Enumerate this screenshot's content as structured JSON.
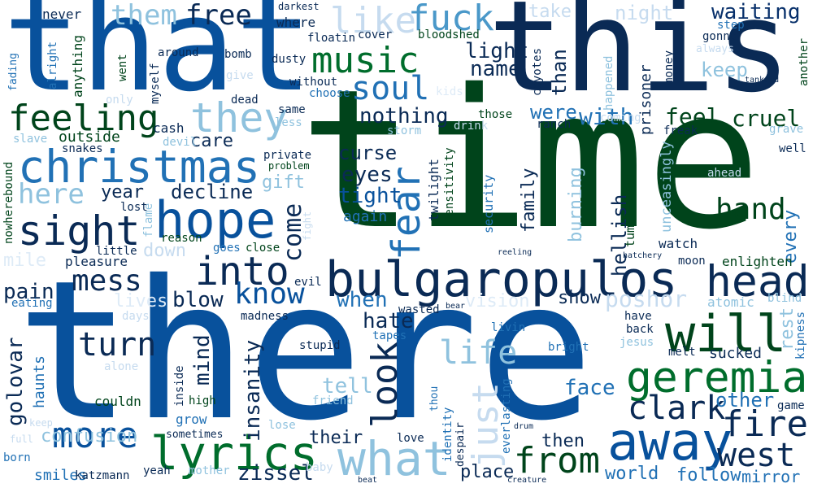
{
  "colors": {
    "navy": "#08306b",
    "dark_navy": "#0a2a55",
    "blue": "#08519c",
    "mid_blue": "#2171b5",
    "steel": "#4a98c9",
    "light_blue": "#8fc2de",
    "pale": "#c6dbef",
    "paler": "#deebf7",
    "dark_green": "#00441b",
    "green": "#006d2c",
    "bright_green": "#238b45",
    "lime": "#1a8f1a"
  },
  "words": [
    {
      "t": "time",
      "c": "dark_green"
    },
    {
      "t": "there",
      "c": "blue"
    },
    {
      "t": "that",
      "c": "blue"
    },
    {
      "t": "this",
      "c": "dark_navy"
    },
    {
      "t": "bulgaropulos",
      "c": "dark_navy"
    },
    {
      "t": "christmas",
      "c": "mid_blue"
    },
    {
      "t": "geremia",
      "c": "green"
    },
    {
      "t": "away",
      "c": "blue"
    },
    {
      "t": "lyrics",
      "c": "green"
    },
    {
      "t": "what",
      "c": "light_blue"
    },
    {
      "t": "hope",
      "c": "blue"
    },
    {
      "t": "sight",
      "c": "dark_navy"
    },
    {
      "t": "music",
      "c": "green"
    },
    {
      "t": "will",
      "c": "dark_green"
    },
    {
      "t": "head",
      "c": "dark_navy"
    },
    {
      "t": "into",
      "c": "dark_navy"
    },
    {
      "t": "feeling",
      "c": "dark_green"
    },
    {
      "t": "they",
      "c": "light_blue"
    },
    {
      "t": "fuck",
      "c": "steel"
    },
    {
      "t": "soul",
      "c": "mid_blue"
    },
    {
      "t": "like",
      "c": "pale"
    },
    {
      "t": "them",
      "c": "light_blue"
    },
    {
      "t": "free",
      "c": "dark_navy"
    },
    {
      "t": "fear",
      "c": "mid_blue"
    },
    {
      "t": "fire",
      "c": "dark_navy"
    },
    {
      "t": "west",
      "c": "dark_navy"
    },
    {
      "t": "from",
      "c": "dark_green"
    },
    {
      "t": "more",
      "c": "blue"
    },
    {
      "t": "clark",
      "c": "dark_navy"
    },
    {
      "t": "hand",
      "c": "dark_green"
    },
    {
      "t": "turn",
      "c": "dark_navy"
    },
    {
      "t": "look",
      "c": "dark_navy"
    },
    {
      "t": "just",
      "c": "pale"
    },
    {
      "t": "life",
      "c": "light_blue"
    },
    {
      "t": "mess",
      "c": "dark_navy"
    },
    {
      "t": "know",
      "c": "blue"
    },
    {
      "t": "come",
      "c": "dark_navy"
    },
    {
      "t": "here",
      "c": "light_blue"
    },
    {
      "t": "waiting",
      "c": "navy"
    },
    {
      "t": "feel",
      "c": "dark_green"
    },
    {
      "t": "cruel",
      "c": "dark_green"
    },
    {
      "t": "with",
      "c": "mid_blue"
    },
    {
      "t": "were",
      "c": "mid_blue"
    },
    {
      "t": "nothing",
      "c": "dark_navy"
    },
    {
      "t": "light",
      "c": "dark_navy"
    },
    {
      "t": "name",
      "c": "dark_navy"
    },
    {
      "t": "than",
      "c": "dark_navy"
    },
    {
      "t": "keep",
      "c": "light_blue"
    },
    {
      "t": "night",
      "c": "pale"
    },
    {
      "t": "take",
      "c": "pale"
    },
    {
      "t": "eyes",
      "c": "dark_navy"
    },
    {
      "t": "curse",
      "c": "dark_navy"
    },
    {
      "t": "tight",
      "c": "blue"
    },
    {
      "t": "again",
      "c": "mid_blue"
    },
    {
      "t": "family",
      "c": "dark_navy"
    },
    {
      "t": "burning",
      "c": "light_blue"
    },
    {
      "t": "hellish",
      "c": "dark_navy"
    },
    {
      "t": "every",
      "c": "mid_blue"
    },
    {
      "t": "poshor",
      "c": "pale"
    },
    {
      "t": "blow",
      "c": "dark_navy"
    },
    {
      "t": "decline",
      "c": "dark_navy"
    },
    {
      "t": "year",
      "c": "dark_navy"
    },
    {
      "t": "gift",
      "c": "light_blue"
    },
    {
      "t": "care",
      "c": "dark_navy"
    },
    {
      "t": "when",
      "c": "mid_blue"
    },
    {
      "t": "hate",
      "c": "dark_navy"
    },
    {
      "t": "show",
      "c": "dark_navy"
    },
    {
      "t": "tell",
      "c": "light_blue"
    },
    {
      "t": "face",
      "c": "mid_blue"
    },
    {
      "t": "other",
      "c": "mid_blue"
    },
    {
      "t": "insanity",
      "c": "dark_navy"
    },
    {
      "t": "mind",
      "c": "dark_navy"
    },
    {
      "t": "pain",
      "c": "dark_navy"
    },
    {
      "t": "golovar",
      "c": "dark_navy"
    },
    {
      "t": "confusion",
      "c": "light_blue"
    },
    {
      "t": "zissel",
      "c": "dark_navy"
    },
    {
      "t": "place",
      "c": "dark_navy"
    },
    {
      "t": "world",
      "c": "mid_blue"
    },
    {
      "t": "follow",
      "c": "mid_blue"
    },
    {
      "t": "mirror",
      "c": "mid_blue"
    },
    {
      "t": "then",
      "c": "dark_navy"
    },
    {
      "t": "their",
      "c": "dark_navy"
    },
    {
      "t": "smiles",
      "c": "mid_blue"
    },
    {
      "t": "haunts",
      "c": "mid_blue"
    },
    {
      "t": "couldn",
      "c": "dark_green"
    },
    {
      "t": "pleasure",
      "c": "dark_navy"
    },
    {
      "t": "down",
      "c": "pale"
    },
    {
      "t": "lives",
      "c": "paler"
    },
    {
      "t": "vision",
      "c": "paler"
    },
    {
      "t": "rest",
      "c": "light_blue"
    },
    {
      "t": "sucked",
      "c": "dark_navy"
    },
    {
      "t": "watch",
      "c": "dark_navy"
    },
    {
      "t": "enlighten",
      "c": "dark_green"
    },
    {
      "t": "unceasingly",
      "c": "light_blue"
    },
    {
      "t": "tumbleweed",
      "c": "dark_green"
    },
    {
      "t": "prisoner",
      "c": "dark_navy"
    },
    {
      "t": "sensitivity",
      "c": "dark_green"
    },
    {
      "t": "twilight",
      "c": "dark_navy"
    },
    {
      "t": "security",
      "c": "mid_blue"
    },
    {
      "t": "nowherebound",
      "c": "dark_green"
    },
    {
      "t": "mile",
      "c": "paler"
    },
    {
      "t": "eating",
      "c": "mid_blue"
    },
    {
      "t": "outside",
      "c": "dark_green"
    },
    {
      "t": "snakes",
      "c": "dark_navy"
    },
    {
      "t": "slave",
      "c": "light_blue"
    },
    {
      "t": "cash",
      "c": "dark_navy"
    },
    {
      "t": "devil",
      "c": "light_blue"
    },
    {
      "t": "anything",
      "c": "dark_green"
    },
    {
      "t": "alright",
      "c": "mid_blue"
    },
    {
      "t": "fading",
      "c": "mid_blue"
    },
    {
      "t": "never",
      "c": "dark_navy"
    },
    {
      "t": "went",
      "c": "dark_green"
    },
    {
      "t": "myself",
      "c": "dark_navy"
    },
    {
      "t": "around",
      "c": "dark_navy"
    },
    {
      "t": "bomb",
      "c": "dark_navy"
    },
    {
      "t": "dusty",
      "c": "dark_navy"
    },
    {
      "t": "floatin",
      "c": "dark_navy"
    },
    {
      "t": "cover",
      "c": "dark_navy"
    },
    {
      "t": "bloodshed",
      "c": "dark_green"
    },
    {
      "t": "where",
      "c": "dark_navy"
    },
    {
      "t": "darkest",
      "c": "dark_navy"
    },
    {
      "t": "coyotes",
      "c": "dark_navy"
    },
    {
      "t": "step",
      "c": "mid_blue"
    },
    {
      "t": "gonna",
      "c": "dark_navy"
    },
    {
      "t": "always",
      "c": "pale"
    },
    {
      "t": "money",
      "c": "dark_navy"
    },
    {
      "t": "happened",
      "c": "light_blue"
    },
    {
      "t": "tankard",
      "c": "dark_navy"
    },
    {
      "t": "another",
      "c": "dark_green"
    },
    {
      "t": "give",
      "c": "pale"
    },
    {
      "t": "dead",
      "c": "dark_navy"
    },
    {
      "t": "only",
      "c": "pale"
    },
    {
      "t": "same",
      "c": "dark_navy"
    },
    {
      "t": "less",
      "c": "light_blue"
    },
    {
      "t": "without",
      "c": "dark_navy"
    },
    {
      "t": "choose",
      "c": "mid_blue"
    },
    {
      "t": "kids",
      "c": "paler"
    },
    {
      "t": "those",
      "c": "dark_green"
    },
    {
      "t": "drink",
      "c": "pale"
    },
    {
      "t": "storm",
      "c": "light_blue"
    },
    {
      "t": "ranch",
      "c": "dark_navy"
    },
    {
      "t": "coming",
      "c": "pale"
    },
    {
      "t": "grave",
      "c": "light_blue"
    },
    {
      "t": "freak",
      "c": "dark_navy"
    },
    {
      "t": "well",
      "c": "dark_navy"
    },
    {
      "t": "ahead",
      "c": "pale"
    },
    {
      "t": "private",
      "c": "dark_navy"
    },
    {
      "t": "problem",
      "c": "dark_green"
    },
    {
      "t": "lost",
      "c": "dark_navy"
    },
    {
      "t": "flame",
      "c": "light_blue"
    },
    {
      "t": "fight",
      "c": "pale"
    },
    {
      "t": "reason",
      "c": "dark_green"
    },
    {
      "t": "goes",
      "c": "mid_blue"
    },
    {
      "t": "close",
      "c": "dark_green"
    },
    {
      "t": "little",
      "c": "dark_navy"
    },
    {
      "t": "reeling",
      "c": "dark_navy"
    },
    {
      "t": "hatchery",
      "c": "dark_navy"
    },
    {
      "t": "moon",
      "c": "dark_navy"
    },
    {
      "t": "evil",
      "c": "dark_navy"
    },
    {
      "t": "madness",
      "c": "dark_navy"
    },
    {
      "t": "days",
      "c": "pale"
    },
    {
      "t": "wasted",
      "c": "dark_navy"
    },
    {
      "t": "bear",
      "c": "dark_navy"
    },
    {
      "t": "atomic",
      "c": "light_blue"
    },
    {
      "t": "blind",
      "c": "light_blue"
    },
    {
      "t": "have",
      "c": "dark_navy"
    },
    {
      "t": "back",
      "c": "dark_navy"
    },
    {
      "t": "kipness",
      "c": "mid_blue"
    },
    {
      "t": "jesus",
      "c": "light_blue"
    },
    {
      "t": "melt",
      "c": "dark_navy"
    },
    {
      "t": "bright",
      "c": "mid_blue"
    },
    {
      "t": "livin",
      "c": "mid_blue"
    },
    {
      "t": "tapes",
      "c": "mid_blue"
    },
    {
      "t": "stupid",
      "c": "dark_navy"
    },
    {
      "t": "alone",
      "c": "pale"
    },
    {
      "t": "inside",
      "c": "dark_navy"
    },
    {
      "t": "high",
      "c": "dark_green"
    },
    {
      "t": "grow",
      "c": "mid_blue"
    },
    {
      "t": "sometimes",
      "c": "dark_navy"
    },
    {
      "t": "friend",
      "c": "light_blue"
    },
    {
      "t": "lose",
      "c": "light_blue"
    },
    {
      "t": "keep",
      "c": "pale"
    },
    {
      "t": "full",
      "c": "pale"
    },
    {
      "t": "born",
      "c": "mid_blue"
    },
    {
      "t": "katzmann",
      "c": "dark_navy"
    },
    {
      "t": "yeah",
      "c": "dark_navy"
    },
    {
      "t": "mother",
      "c": "light_blue"
    },
    {
      "t": "baby",
      "c": "pale"
    },
    {
      "t": "beat",
      "c": "dark_navy"
    },
    {
      "t": "creature",
      "c": "dark_navy"
    },
    {
      "t": "love",
      "c": "dark_navy"
    },
    {
      "t": "identity",
      "c": "mid_blue"
    },
    {
      "t": "despair",
      "c": "dark_navy"
    },
    {
      "t": "thou",
      "c": "mid_blue"
    },
    {
      "t": "everlasting",
      "c": "mid_blue"
    },
    {
      "t": "drum",
      "c": "dark_navy"
    },
    {
      "t": "game",
      "c": "dark_navy"
    }
  ]
}
